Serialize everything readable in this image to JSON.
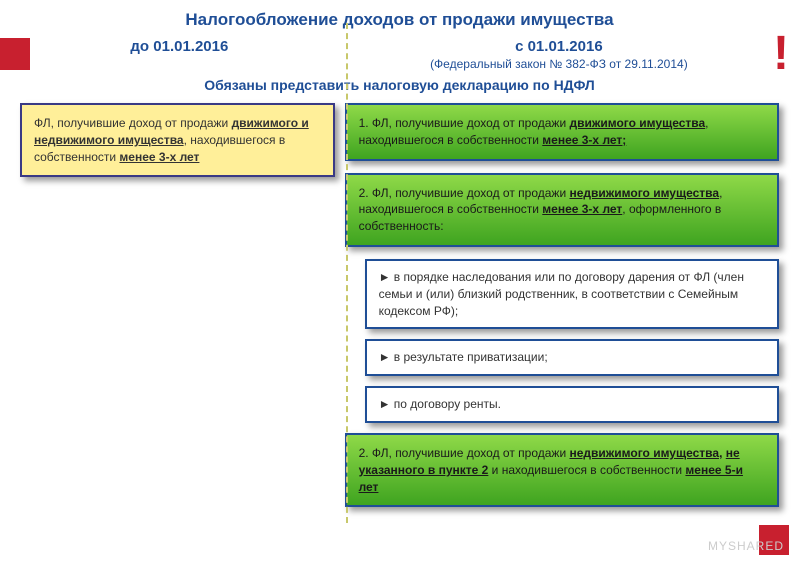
{
  "title": "Налогообложение доходов от продажи имущества",
  "header": {
    "left": "до 01.01.2016",
    "right": "с 01.01.2016",
    "sublaw": "(Федеральный закон № 382-ФЗ от 29.11.2014)",
    "exclam": "!"
  },
  "subtitle": "Обязаны представить налоговую декларацию по НДФЛ",
  "left_box": {
    "pre": "ФЛ, получившие доход от продажи ",
    "u1": "движимого и недвижимого имущества",
    "mid": ", находившегося в собственности ",
    "u2": "менее 3-х лет"
  },
  "green1": {
    "pre": "1. ФЛ, получившие доход от продажи ",
    "u1": "движимого имущества",
    "mid": ", находившегося в собственности ",
    "u2": "менее 3-х лет;"
  },
  "green2": {
    "pre": "2. ФЛ, получившие доход от продажи ",
    "u1": "недвижимого имущества",
    "mid": ", находившегося в собственности ",
    "u2": "менее 3-х лет",
    "post": ", оформленного в собственность:"
  },
  "white1": "► в порядке наследования или по договору дарения от ФЛ (член семьи и (или) близкий родственник, в соответствии с Семейным кодексом РФ);",
  "white2": "► в результате приватизации;",
  "white3": "► по договору ренты.",
  "green3": {
    "pre": "2. ФЛ, получившие доход от продажи ",
    "u1": "недвижимого имущества,",
    "mid1": " ",
    "u2": "не указанного в пункте 2",
    "mid2": " и находившегося в собственности ",
    "u3": "менее 5-и лет"
  },
  "watermark": "MYSHARED",
  "colors": {
    "title_color": "#1f4e96",
    "red_accent": "#c8202f",
    "yellow_bg": "#ffef99",
    "green_grad_top": "#8fd948",
    "green_grad_bottom": "#3fa420",
    "border_blue": "#1f4e96",
    "page_bg": "#ffffff"
  }
}
